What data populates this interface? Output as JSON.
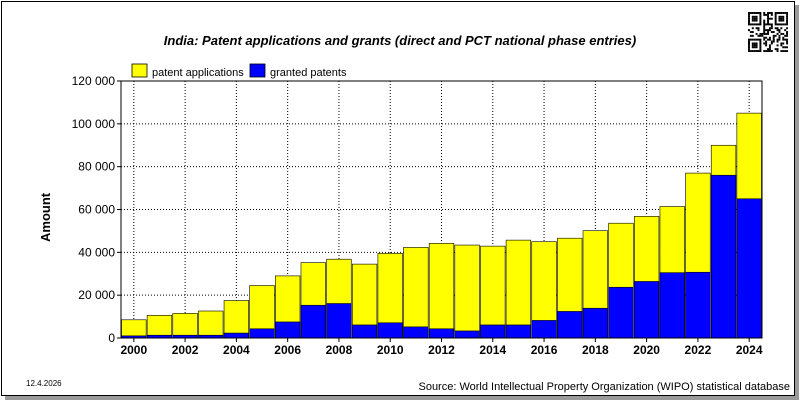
{
  "page": {
    "title": "India: Patent applications and grants (direct and PCT national phase entries)",
    "date": "12.4.2026",
    "source": "Source: World Intellectual Property Organization (WIPO) statistical database"
  },
  "chart_data": {
    "type": "bar",
    "stacking": "overlay",
    "title": "India: Patent applications and grants (direct and PCT national phase entries)",
    "xlabel": "",
    "ylabel": "Amount",
    "ylim": [
      0,
      120000
    ],
    "yticks": [
      0,
      20000,
      40000,
      60000,
      80000,
      100000,
      120000
    ],
    "ytick_labels": [
      "0",
      "20 000",
      "40 000",
      "60 000",
      "80 000",
      "100 000",
      "120 000"
    ],
    "xtick_labels": [
      "2000",
      "2002",
      "2004",
      "2006",
      "2008",
      "2010",
      "2012",
      "2014",
      "2016",
      "2018",
      "2020",
      "2022",
      "2024"
    ],
    "grid": true,
    "legend_position": "top-left",
    "categories": [
      "2000",
      "2001",
      "2002",
      "2003",
      "2004",
      "2005",
      "2006",
      "2007",
      "2008",
      "2009",
      "2010",
      "2011",
      "2012",
      "2013",
      "2014",
      "2015",
      "2016",
      "2017",
      "2018",
      "2019",
      "2020",
      "2021",
      "2022",
      "2023",
      "2024"
    ],
    "series": [
      {
        "name": "patent applications",
        "color": "#ffff00",
        "values": [
          8500,
          10600,
          11500,
          12600,
          17500,
          24500,
          29000,
          35200,
          36800,
          34500,
          39500,
          42300,
          44200,
          43400,
          42900,
          45700,
          45000,
          46600,
          50100,
          53600,
          56800,
          61400,
          77000,
          90000,
          105000
        ]
      },
      {
        "name": "granted patents",
        "color": "#0000ff",
        "values": [
          1000,
          1300,
          1300,
          1300,
          2300,
          4300,
          7500,
          15300,
          16100,
          6100,
          7100,
          5200,
          4300,
          3300,
          6100,
          6100,
          8200,
          12400,
          13900,
          23700,
          26400,
          30500,
          30700,
          76000,
          65000
        ]
      }
    ]
  }
}
